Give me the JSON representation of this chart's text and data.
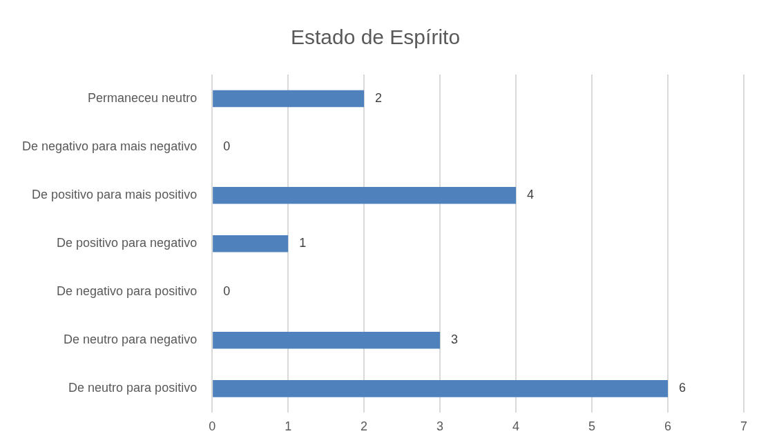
{
  "chart_data": {
    "type": "bar",
    "orientation": "horizontal",
    "title": "Estado de Espírito",
    "categories": [
      "Permaneceu neutro",
      "De negativo para mais negativo",
      "De positivo para mais positivo",
      "De positivo para negativo",
      "De negativo para positivo",
      "De neutro para negativo",
      "De neutro para positivo"
    ],
    "values": [
      2,
      0,
      4,
      1,
      0,
      3,
      6
    ],
    "color": "#4f81bd",
    "xlim": [
      0,
      7
    ],
    "xticks": [
      0,
      1,
      2,
      3,
      4,
      5,
      6,
      7
    ],
    "grid": "x",
    "data_labels": true,
    "legend": false
  }
}
